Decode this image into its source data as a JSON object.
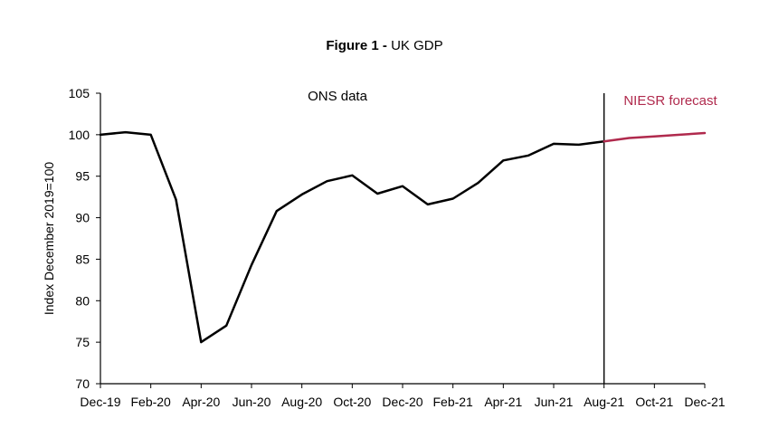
{
  "chart_data": {
    "type": "line",
    "title_bold": "Figure 1 -",
    "title_rest": "UK GDP",
    "ylabel": "Index December 2019=100",
    "xlabel": "",
    "ylim": [
      70,
      105
    ],
    "yticks": [
      70,
      75,
      80,
      85,
      90,
      95,
      100,
      105
    ],
    "xticks": [
      "Dec-19",
      "Feb-20",
      "Apr-20",
      "Jun-20",
      "Aug-20",
      "Oct-20",
      "Dec-20",
      "Feb-21",
      "Apr-21",
      "Jun-21",
      "Aug-21",
      "Oct-21",
      "Dec-21"
    ],
    "x_months": [
      "Dec-19",
      "Jan-20",
      "Feb-20",
      "Mar-20",
      "Apr-20",
      "May-20",
      "Jun-20",
      "Jul-20",
      "Aug-20",
      "Sep-20",
      "Oct-20",
      "Nov-20",
      "Dec-20",
      "Jan-21",
      "Feb-21",
      "Mar-21",
      "Apr-21",
      "May-21",
      "Jun-21",
      "Jul-21",
      "Aug-21",
      "Sep-21",
      "Oct-21",
      "Nov-21",
      "Dec-21"
    ],
    "series": [
      {
        "name": "ONS data",
        "color": "#000000",
        "x_index": [
          0,
          1,
          2,
          3,
          4,
          5,
          6,
          7,
          8,
          9,
          10,
          11,
          12,
          13,
          14,
          15,
          16,
          17,
          18,
          19,
          20
        ],
        "values": [
          100.0,
          100.3,
          100.0,
          92.2,
          75.0,
          77.0,
          84.3,
          90.8,
          92.8,
          94.4,
          95.1,
          92.9,
          93.8,
          91.6,
          92.3,
          94.2,
          96.9,
          97.5,
          98.9,
          98.8,
          99.2
        ]
      },
      {
        "name": "NIESR forecast",
        "color": "#b02a4d",
        "x_index": [
          20,
          21,
          22,
          23,
          24
        ],
        "values": [
          99.2,
          99.6,
          99.8,
          100.0,
          100.2
        ]
      }
    ],
    "annotations": [
      {
        "text": "ONS data",
        "color": "#000000"
      },
      {
        "text": "NIESR forecast",
        "color": "#b02a4d"
      }
    ],
    "divider_at": "Aug-21",
    "grid": false
  }
}
